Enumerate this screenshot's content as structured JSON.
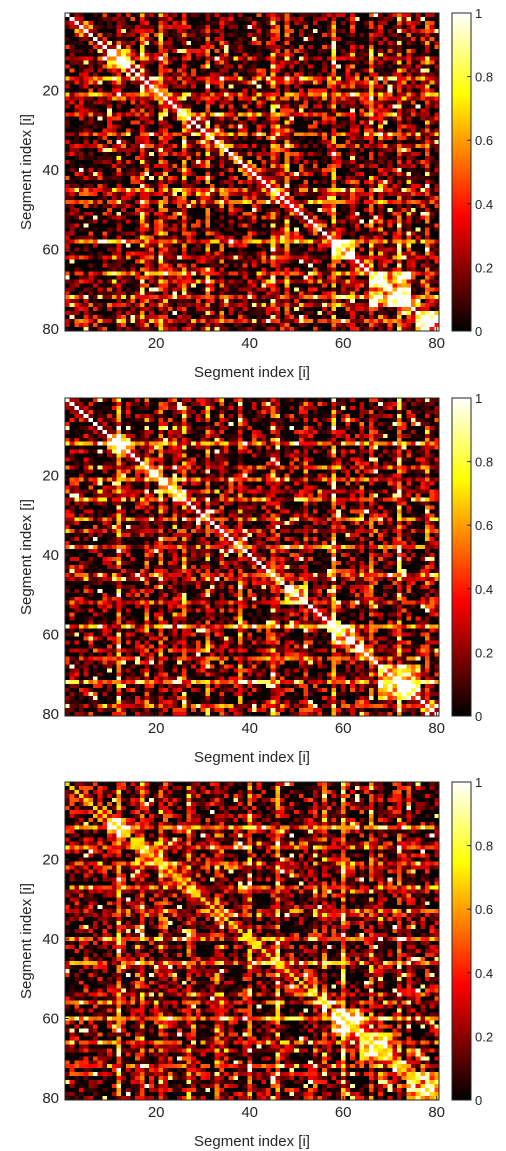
{
  "chart_data": [
    {
      "type": "heatmap",
      "xlabel": "Segment index [i]",
      "ylabel": "Segment index [i]",
      "xlim": [
        0.5,
        80.5
      ],
      "ylim": [
        80.5,
        0.5
      ],
      "xticks": [
        20,
        40,
        60,
        80
      ],
      "yticks": [
        20,
        40,
        60,
        80
      ],
      "grid_size": [
        80,
        80
      ],
      "colormap": "hot",
      "clim": [
        0,
        1
      ],
      "colorbar_ticks": [
        0,
        0.2,
        0.4,
        0.6,
        0.8,
        1
      ],
      "colorbar_tick_labels": [
        "0",
        "0.2",
        "0.4",
        "0.6",
        "0.8",
        "1"
      ],
      "diagonal_value": 1,
      "bright_blocks": [
        [
          10,
          14
        ],
        [
          58,
          62
        ],
        [
          66,
          74
        ],
        [
          76,
          80
        ]
      ],
      "bright_columns": [
        17,
        21,
        26,
        31,
        45,
        48,
        58,
        66,
        72,
        78
      ],
      "bright_rows": [
        12,
        18,
        22,
        34,
        46,
        58,
        62,
        68,
        74
      ],
      "seed": 11
    },
    {
      "type": "heatmap",
      "xlabel": "Segment index [i]",
      "ylabel": "Segment index [i]",
      "xlim": [
        0.5,
        80.5
      ],
      "ylim": [
        80.5,
        0.5
      ],
      "xticks": [
        20,
        40,
        60,
        80
      ],
      "yticks": [
        20,
        40,
        60,
        80
      ],
      "grid_size": [
        80,
        80
      ],
      "colormap": "hot",
      "clim": [
        0,
        1
      ],
      "colorbar_ticks": [
        0,
        0.2,
        0.4,
        0.6,
        0.8,
        1
      ],
      "colorbar_tick_labels": [
        "0",
        "0.2",
        "0.4",
        "0.6",
        "0.8",
        "1"
      ],
      "diagonal_value": 1,
      "bright_blocks": [
        [
          10,
          14
        ],
        [
          48,
          52
        ],
        [
          58,
          62
        ],
        [
          68,
          76
        ]
      ],
      "bright_columns": [
        12,
        21,
        26,
        31,
        38,
        45,
        58,
        66,
        72,
        78
      ],
      "bright_rows": [
        12,
        18,
        24,
        34,
        46,
        52,
        58,
        64,
        72
      ],
      "seed": 23
    },
    {
      "type": "heatmap",
      "xlabel": "Segment index [i]",
      "ylabel": "Segment index [i]",
      "xlim": [
        0.5,
        80.5
      ],
      "ylim": [
        80.5,
        0.5
      ],
      "xticks": [
        20,
        40,
        60,
        80
      ],
      "yticks": [
        20,
        40,
        60,
        80
      ],
      "grid_size": [
        80,
        80
      ],
      "colormap": "hot",
      "clim": [
        0,
        1
      ],
      "colorbar_ticks": [
        0,
        0.2,
        0.4,
        0.6,
        0.8,
        1
      ],
      "colorbar_tick_labels": [
        "0",
        "0.2",
        "0.4",
        "0.6",
        "0.8",
        "1"
      ],
      "diagonal_value": 0.7,
      "bright_blocks": [
        [
          10,
          14
        ],
        [
          58,
          64
        ],
        [
          64,
          70
        ],
        [
          74,
          80
        ]
      ],
      "bright_columns": [
        12,
        17,
        21,
        27,
        33,
        40,
        46,
        56,
        60,
        66,
        72
      ],
      "bright_rows": [
        12,
        16,
        22,
        28,
        34,
        40,
        46,
        54,
        60,
        68,
        74
      ],
      "seed": 37
    }
  ]
}
